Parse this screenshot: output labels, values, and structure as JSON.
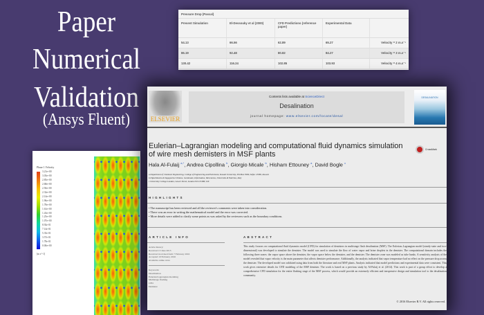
{
  "heading": {
    "line1": "Paper",
    "line2": "Numerical",
    "line3": "Validation",
    "line4": "(Ansys Fluent)"
  },
  "table": {
    "caption": "Pressure Drop (Pascal)",
    "headers": [
      "Present Simulation",
      "El-Dessouky et al (2000)",
      "CFD Predictions (reference paper)",
      "Experimental Data",
      ""
    ],
    "rows": [
      [
        "54.13",
        "66.56",
        "62.89",
        "65.27",
        "Velocity = 2 m.s⁻¹"
      ],
      [
        "86.19",
        "92.48",
        "80.82",
        "84.27",
        "Velocity = 3 m.s⁻¹"
      ],
      [
        "130.42",
        "116.24",
        "102.85",
        "103.93",
        "Velocity = 4 m.s⁻¹"
      ]
    ]
  },
  "contour": {
    "title": "Phase 1.Velocity",
    "unit": "[m s^-1]",
    "levels": [
      "3.21e+00",
      "3.03e+00",
      "2.85e+00",
      "2.68e+00",
      "2.50e+00",
      "2.32e+00",
      "2.14e+00",
      "1.96e+00",
      "1.78e+00",
      "1.61e+00",
      "1.43e+00",
      "1.25e+00",
      "1.07e+00",
      "8.92e-01",
      "7.14e-01",
      "5.35e-01",
      "3.57e-01",
      "1.78e-01",
      "0.00e+00"
    ]
  },
  "paper": {
    "publisher": "ELSEVIER",
    "contents_prefix": "Contents lists available at ",
    "contents_link": "ScienceDirect",
    "journal": "Desalination",
    "homepage_prefix": "journal homepage: ",
    "homepage_url": "www.elsevier.com/locate/desal",
    "cover_title": "DESALINATION",
    "crossmark": "CrossMark",
    "title": "Eulerian–Lagrangian modeling and computational fluid dynamics simulation of wire mesh demisters in MSF plants",
    "authors": [
      {
        "name": "Hala Al-Fulaij",
        "sup": "a,*"
      },
      {
        "name": "Andrea Cipollina",
        "sup": "b"
      },
      {
        "name": "Giorgio Micale",
        "sup": "b"
      },
      {
        "name": "Hisham Ettouney",
        "sup": "a"
      },
      {
        "name": "David Bogle",
        "sup": "c"
      }
    ],
    "affiliations": [
      "a Department of Chemical Engineering, College of Engineering and Petroleum, Kuwait University, P.O.Box 5969, Safat. 13060, Kuwait",
      "b Dipartimento di Ingegneria Chimica, Gestionale, Informatica, Meccanica, Università di Palermo, Italy",
      "c University College London, Gower Street, London WC1E 6BT, UK"
    ],
    "highlights_label": "HIGHLIGHTS",
    "highlights": [
      "The manuscript has been reviewed and all the reviewer's comments were taken into consideration.",
      "There was an error in writing the mathematical model and the error was corrected.",
      "More details were added to clarify some points as was asked by the reviewers such as the boundary conditions."
    ],
    "info_label": "ARTICLE INFO",
    "history": [
      "Article history:",
      "Received 13 June 2015",
      "Received in revised form 7 February 2016",
      "Accepted 10 February 2016",
      "Available online xxxx"
    ],
    "keywords": [
      "Keywords:",
      "Desalination",
      "Eulerian/Lagrangian modeling",
      "Multistage flashing",
      "CFD",
      "Demister"
    ],
    "abstract_label": "ABSTRACT",
    "abstract": "This study focuses on computational fluid dynamics model (CFD) for simulation of demisters in multistage flash desalination (MSF). The Eulerian–Lagrangian model (steady-state and two-dimensional) was developed to simulate the demister. The model was used to simulate the flow of water vapor and brine droplets in the demister. The computational domain includes the following three zones: the vapor space above the demister, the vapor space below the demister, and the demister. The demister zone was modeled as tube banks. A sensitivity analysis of the model revealed that vapor velocity is the main parameter that affects demister performance. Additionally, the analysis indicated that vapor temperature had no effect on the pressure drop across the demister. The developed model was validated using data from both the literature and real MSF plants. Analysis indicated that model predictions and experimental data were consistent. This work gives extensive details for CFD modeling of the MSF demister. The work is based on a previous study by Al-Fulaij et al. (2014). This work is part of a group effort to develop a comprehensive CFD simulation for the entire flashing stage of the MSF process, which would provide an extremely efficient and inexpensive design and simulation tool to the desalination community.",
    "copyright": "© 2016 Elsevier B.V. All rights reserved."
  }
}
